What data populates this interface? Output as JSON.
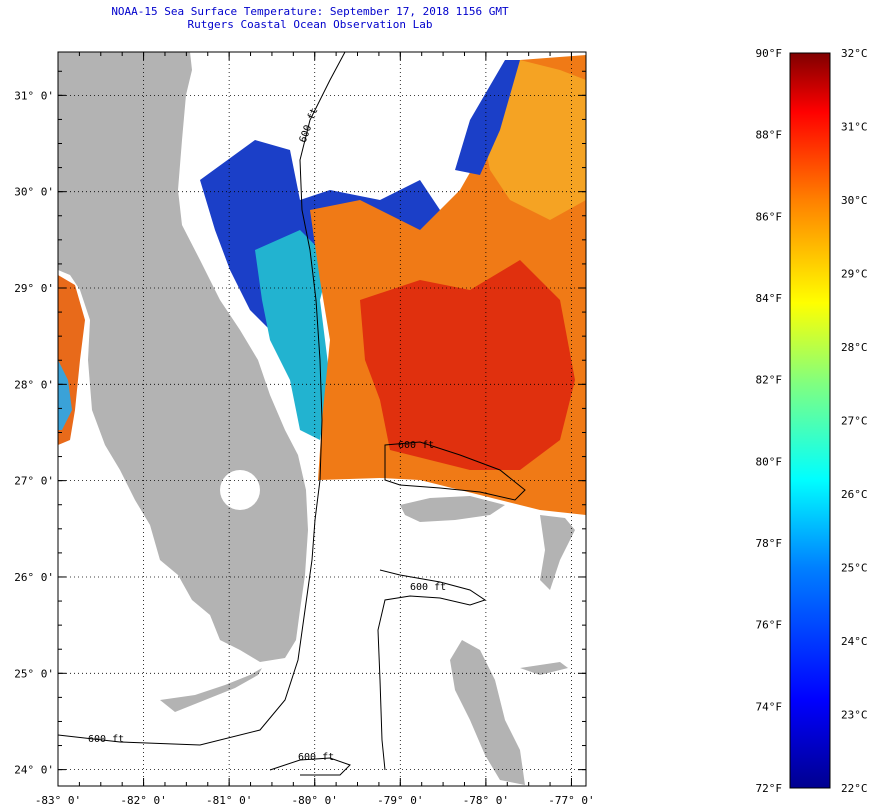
{
  "title": {
    "line1": "NOAA-15 Sea Surface Temperature:  September 17, 2018 1156 GMT",
    "line2": "Rutgers Coastal Ocean Observation Lab"
  },
  "map": {
    "lat_labels": [
      "31° 0'",
      "30° 0'",
      "29° 0'",
      "28° 0'",
      "27° 0'",
      "26° 0'",
      "25° 0'",
      "24° 0'"
    ],
    "lat_values": [
      31,
      30,
      29,
      28,
      27,
      26,
      25,
      24
    ],
    "lon_labels": [
      "-83° 0'",
      "-82° 0'",
      "-81° 0'",
      "-80° 0'",
      "-79° 0'",
      "-78° 0'",
      "-77° 0'"
    ],
    "lon_values": [
      -83,
      -82,
      -81,
      -80,
      -79,
      -78,
      -77
    ],
    "lat_range": [
      23.83,
      31.45
    ],
    "lon_range": [
      -83,
      -76.83
    ],
    "contour_labels": [
      "600 ft",
      "600 ft",
      "600 ft",
      "600 ft",
      "600 ft"
    ],
    "colors": {
      "land": "#b3b3b3",
      "frame": "#000000",
      "grid": "#000000"
    }
  },
  "colorbar": {
    "fahrenheit_labels": [
      "90°F",
      "88°F",
      "86°F",
      "84°F",
      "82°F",
      "80°F",
      "78°F",
      "76°F",
      "74°F",
      "72°F"
    ],
    "celsius_labels": [
      "32°C",
      "31°C",
      "30°C",
      "29°C",
      "28°C",
      "27°C",
      "26°C",
      "25°C",
      "24°C",
      "23°C",
      "22°C"
    ],
    "range_f": [
      72,
      90
    ],
    "range_c": [
      22,
      32
    ],
    "colors": [
      "#00008f",
      "#0000ff",
      "#0080ff",
      "#00ffff",
      "#80ff80",
      "#ffff00",
      "#ff8000",
      "#ff0000",
      "#800000"
    ]
  }
}
